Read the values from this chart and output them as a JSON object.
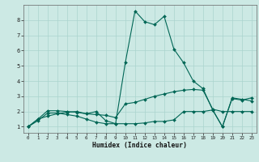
{
  "title": "",
  "xlabel": "Humidex (Indice chaleur)",
  "ylabel": "",
  "bg_color": "#cce9e4",
  "line_color": "#006655",
  "grid_color": "#aad4ce",
  "x": [
    0,
    1,
    2,
    3,
    4,
    5,
    6,
    7,
    8,
    9,
    10,
    11,
    12,
    13,
    14,
    15,
    16,
    17,
    18,
    19,
    20,
    21,
    22,
    23
  ],
  "y_max": [
    1.0,
    1.4,
    1.9,
    1.9,
    1.8,
    1.7,
    1.5,
    1.3,
    1.2,
    1.2,
    5.2,
    8.6,
    7.9,
    7.7,
    8.25,
    6.1,
    5.2,
    4.0,
    3.5,
    2.1,
    1.0,
    2.85,
    2.75,
    2.9
  ],
  "y_mid": [
    1.0,
    1.5,
    2.05,
    2.05,
    2.0,
    1.95,
    1.85,
    1.8,
    1.75,
    1.6,
    2.5,
    2.6,
    2.8,
    3.0,
    3.15,
    3.3,
    3.4,
    3.45,
    3.4,
    2.15,
    2.0,
    2.0,
    2.0,
    2.0
  ],
  "y_min": [
    1.0,
    1.5,
    1.7,
    1.85,
    1.95,
    2.0,
    1.85,
    2.0,
    1.4,
    1.2,
    1.2,
    1.2,
    1.25,
    1.35,
    1.35,
    1.45,
    2.0,
    2.0,
    2.0,
    2.1,
    1.0,
    2.9,
    2.8,
    2.7
  ],
  "ylim": [
    0.6,
    9.0
  ],
  "xlim": [
    -0.5,
    23.5
  ],
  "yticks": [
    1,
    2,
    3,
    4,
    5,
    6,
    7,
    8
  ],
  "xticks": [
    0,
    1,
    2,
    3,
    4,
    5,
    6,
    7,
    8,
    9,
    10,
    11,
    12,
    13,
    14,
    15,
    16,
    17,
    18,
    19,
    20,
    21,
    22,
    23
  ],
  "markersize": 2.0,
  "linewidth": 0.8
}
